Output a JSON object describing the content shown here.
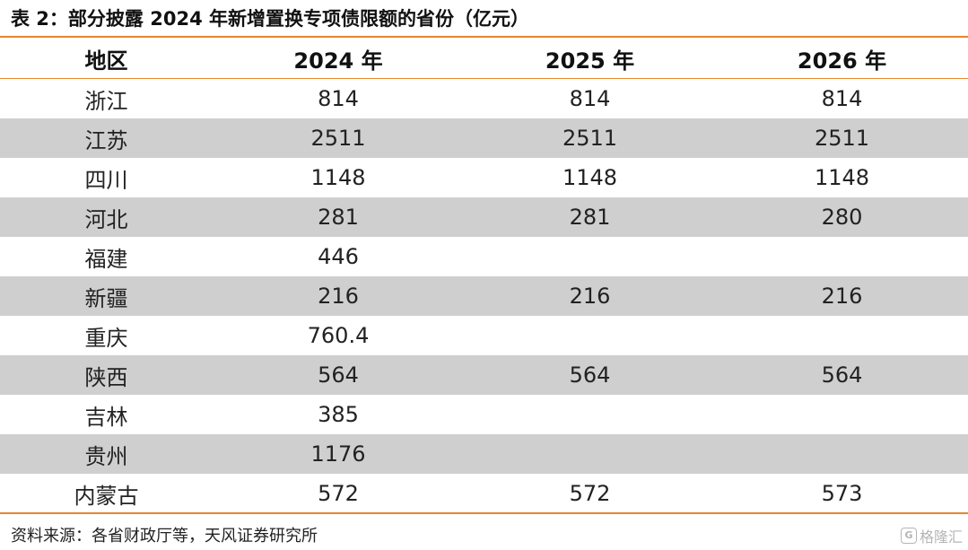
{
  "title": "表 2：部分披露 2024 年新增置换专项债限额的省份（亿元）",
  "table": {
    "headers": [
      "地区",
      "2024 年",
      "2025 年",
      "2026 年"
    ],
    "rows": [
      {
        "region": "浙江",
        "y2024": "814",
        "y2025": "814",
        "y2026": "814"
      },
      {
        "region": "江苏",
        "y2024": "2511",
        "y2025": "2511",
        "y2026": "2511"
      },
      {
        "region": "四川",
        "y2024": "1148",
        "y2025": "1148",
        "y2026": "1148"
      },
      {
        "region": "河北",
        "y2024": "281",
        "y2025": "281",
        "y2026": "280"
      },
      {
        "region": "福建",
        "y2024": "446",
        "y2025": "",
        "y2026": ""
      },
      {
        "region": "新疆",
        "y2024": "216",
        "y2025": "216",
        "y2026": "216"
      },
      {
        "region": "重庆",
        "y2024": "760.4",
        "y2025": "",
        "y2026": ""
      },
      {
        "region": "陕西",
        "y2024": "564",
        "y2025": "564",
        "y2026": "564"
      },
      {
        "region": "吉林",
        "y2024": "385",
        "y2025": "",
        "y2026": ""
      },
      {
        "region": "贵州",
        "y2024": "1176",
        "y2025": "",
        "y2026": ""
      },
      {
        "region": "内蒙古",
        "y2024": "572",
        "y2025": "572",
        "y2026": "573"
      }
    ]
  },
  "source": "资料来源：各省财政厅等，天风证券研究所",
  "watermark": {
    "icon": "G",
    "text": "格隆汇"
  }
}
